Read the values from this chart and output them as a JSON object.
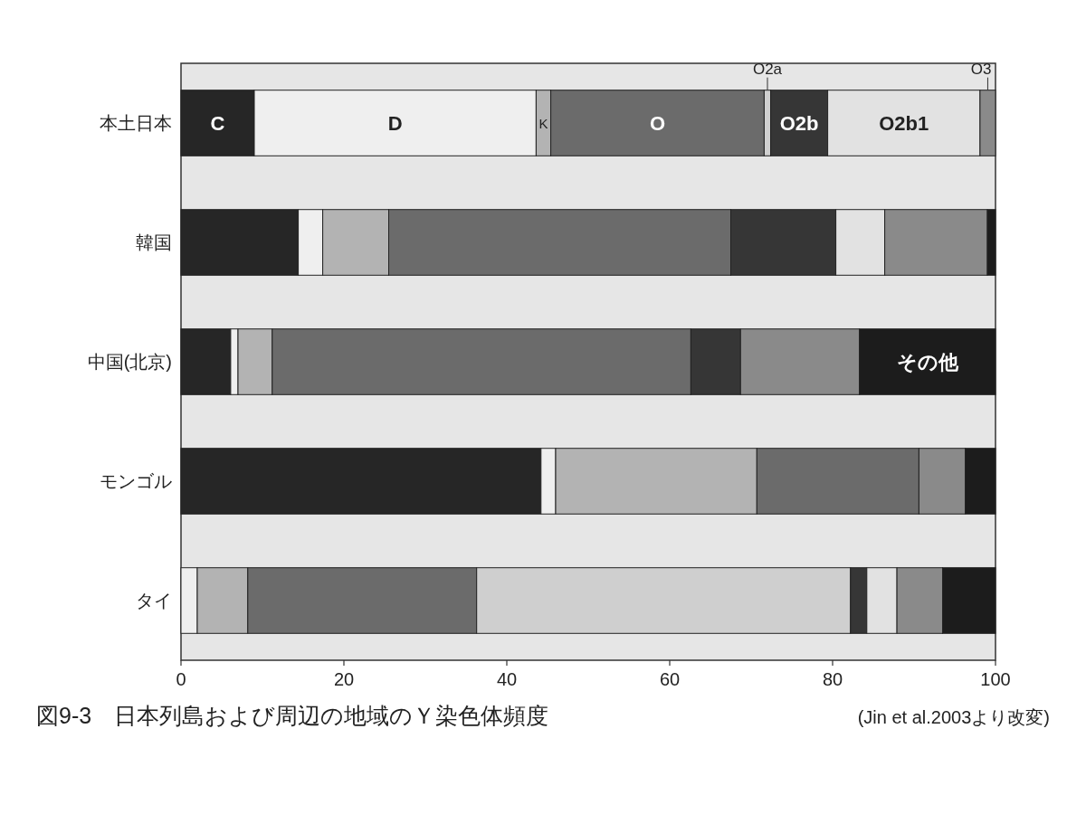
{
  "chart_data": {
    "type": "bar",
    "orientation": "horizontal",
    "stacked": true,
    "title": "図9-3　日本列島および周辺の地域のＹ染色体頻度",
    "annotations": [
      "(Jin et al.2003より改変)"
    ],
    "categories": [
      "本土日本",
      "韓国",
      "中国(北京)",
      "モンゴル",
      "タイ"
    ],
    "xlim": [
      0,
      100
    ],
    "xticks": [
      0,
      20,
      40,
      60,
      80,
      100
    ],
    "legend": false,
    "series": [
      {
        "name": "C",
        "color": "#262626",
        "values": [
          9,
          14.4,
          6.1,
          44.2,
          0
        ]
      },
      {
        "name": "D",
        "color": "#efefef",
        "values": [
          34.6,
          3,
          0.9,
          1.8,
          2
        ]
      },
      {
        "name": "K",
        "color": "#b3b3b3",
        "values": [
          1.8,
          8.1,
          4.2,
          24.7,
          6.2
        ]
      },
      {
        "name": "O",
        "color": "#6b6b6b",
        "values": [
          26.2,
          42,
          51.4,
          19.9,
          28.1
        ]
      },
      {
        "name": "O2a",
        "color": "#cfcfcf",
        "values": [
          0.8,
          0,
          0,
          0,
          45.9
        ]
      },
      {
        "name": "O2b",
        "color": "#363636",
        "values": [
          7,
          12.9,
          6.1,
          0,
          2
        ]
      },
      {
        "name": "O2b1",
        "color": "#e2e2e2",
        "values": [
          18.7,
          6,
          0,
          0,
          3.7
        ]
      },
      {
        "name": "O3",
        "color": "#8a8a8a",
        "values": [
          1.9,
          12.6,
          14.6,
          5.7,
          5.6
        ]
      },
      {
        "name": "その他",
        "color": "#1c1c1c",
        "values": [
          0,
          1,
          16.7,
          3.7,
          6.5
        ]
      }
    ]
  }
}
